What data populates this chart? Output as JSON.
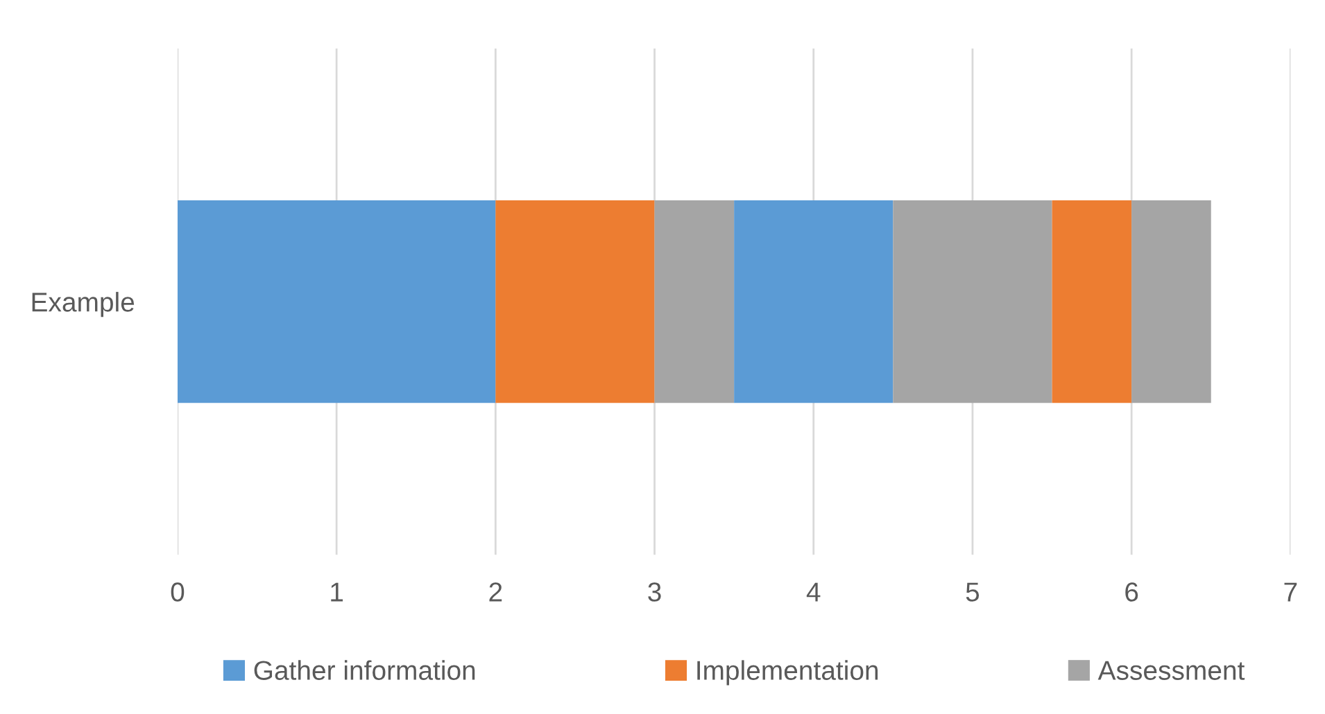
{
  "chart_data": {
    "type": "bar",
    "orientation": "horizontal",
    "stacked": true,
    "categories": [
      "Example"
    ],
    "series": [
      {
        "name": "Gather information",
        "color": "#5b9bd5",
        "values": [
          2
        ]
      },
      {
        "name": "Implementation",
        "color": "#ed7d31",
        "values": [
          1
        ]
      },
      {
        "name": "Assessment",
        "color": "#a5a5a5",
        "values": [
          0.5
        ]
      },
      {
        "color": "#5b9bd5",
        "values": [
          1
        ]
      },
      {
        "color": "#a5a5a5",
        "values": [
          1
        ]
      },
      {
        "color": "#ed7d31",
        "values": [
          0.5
        ]
      },
      {
        "color": "#a5a5a5",
        "values": [
          0.5
        ]
      }
    ],
    "xlim": [
      0,
      7
    ],
    "xticks": [
      0,
      1,
      2,
      3,
      4,
      5,
      6,
      7
    ],
    "grid": "x",
    "legend": "bottom"
  }
}
